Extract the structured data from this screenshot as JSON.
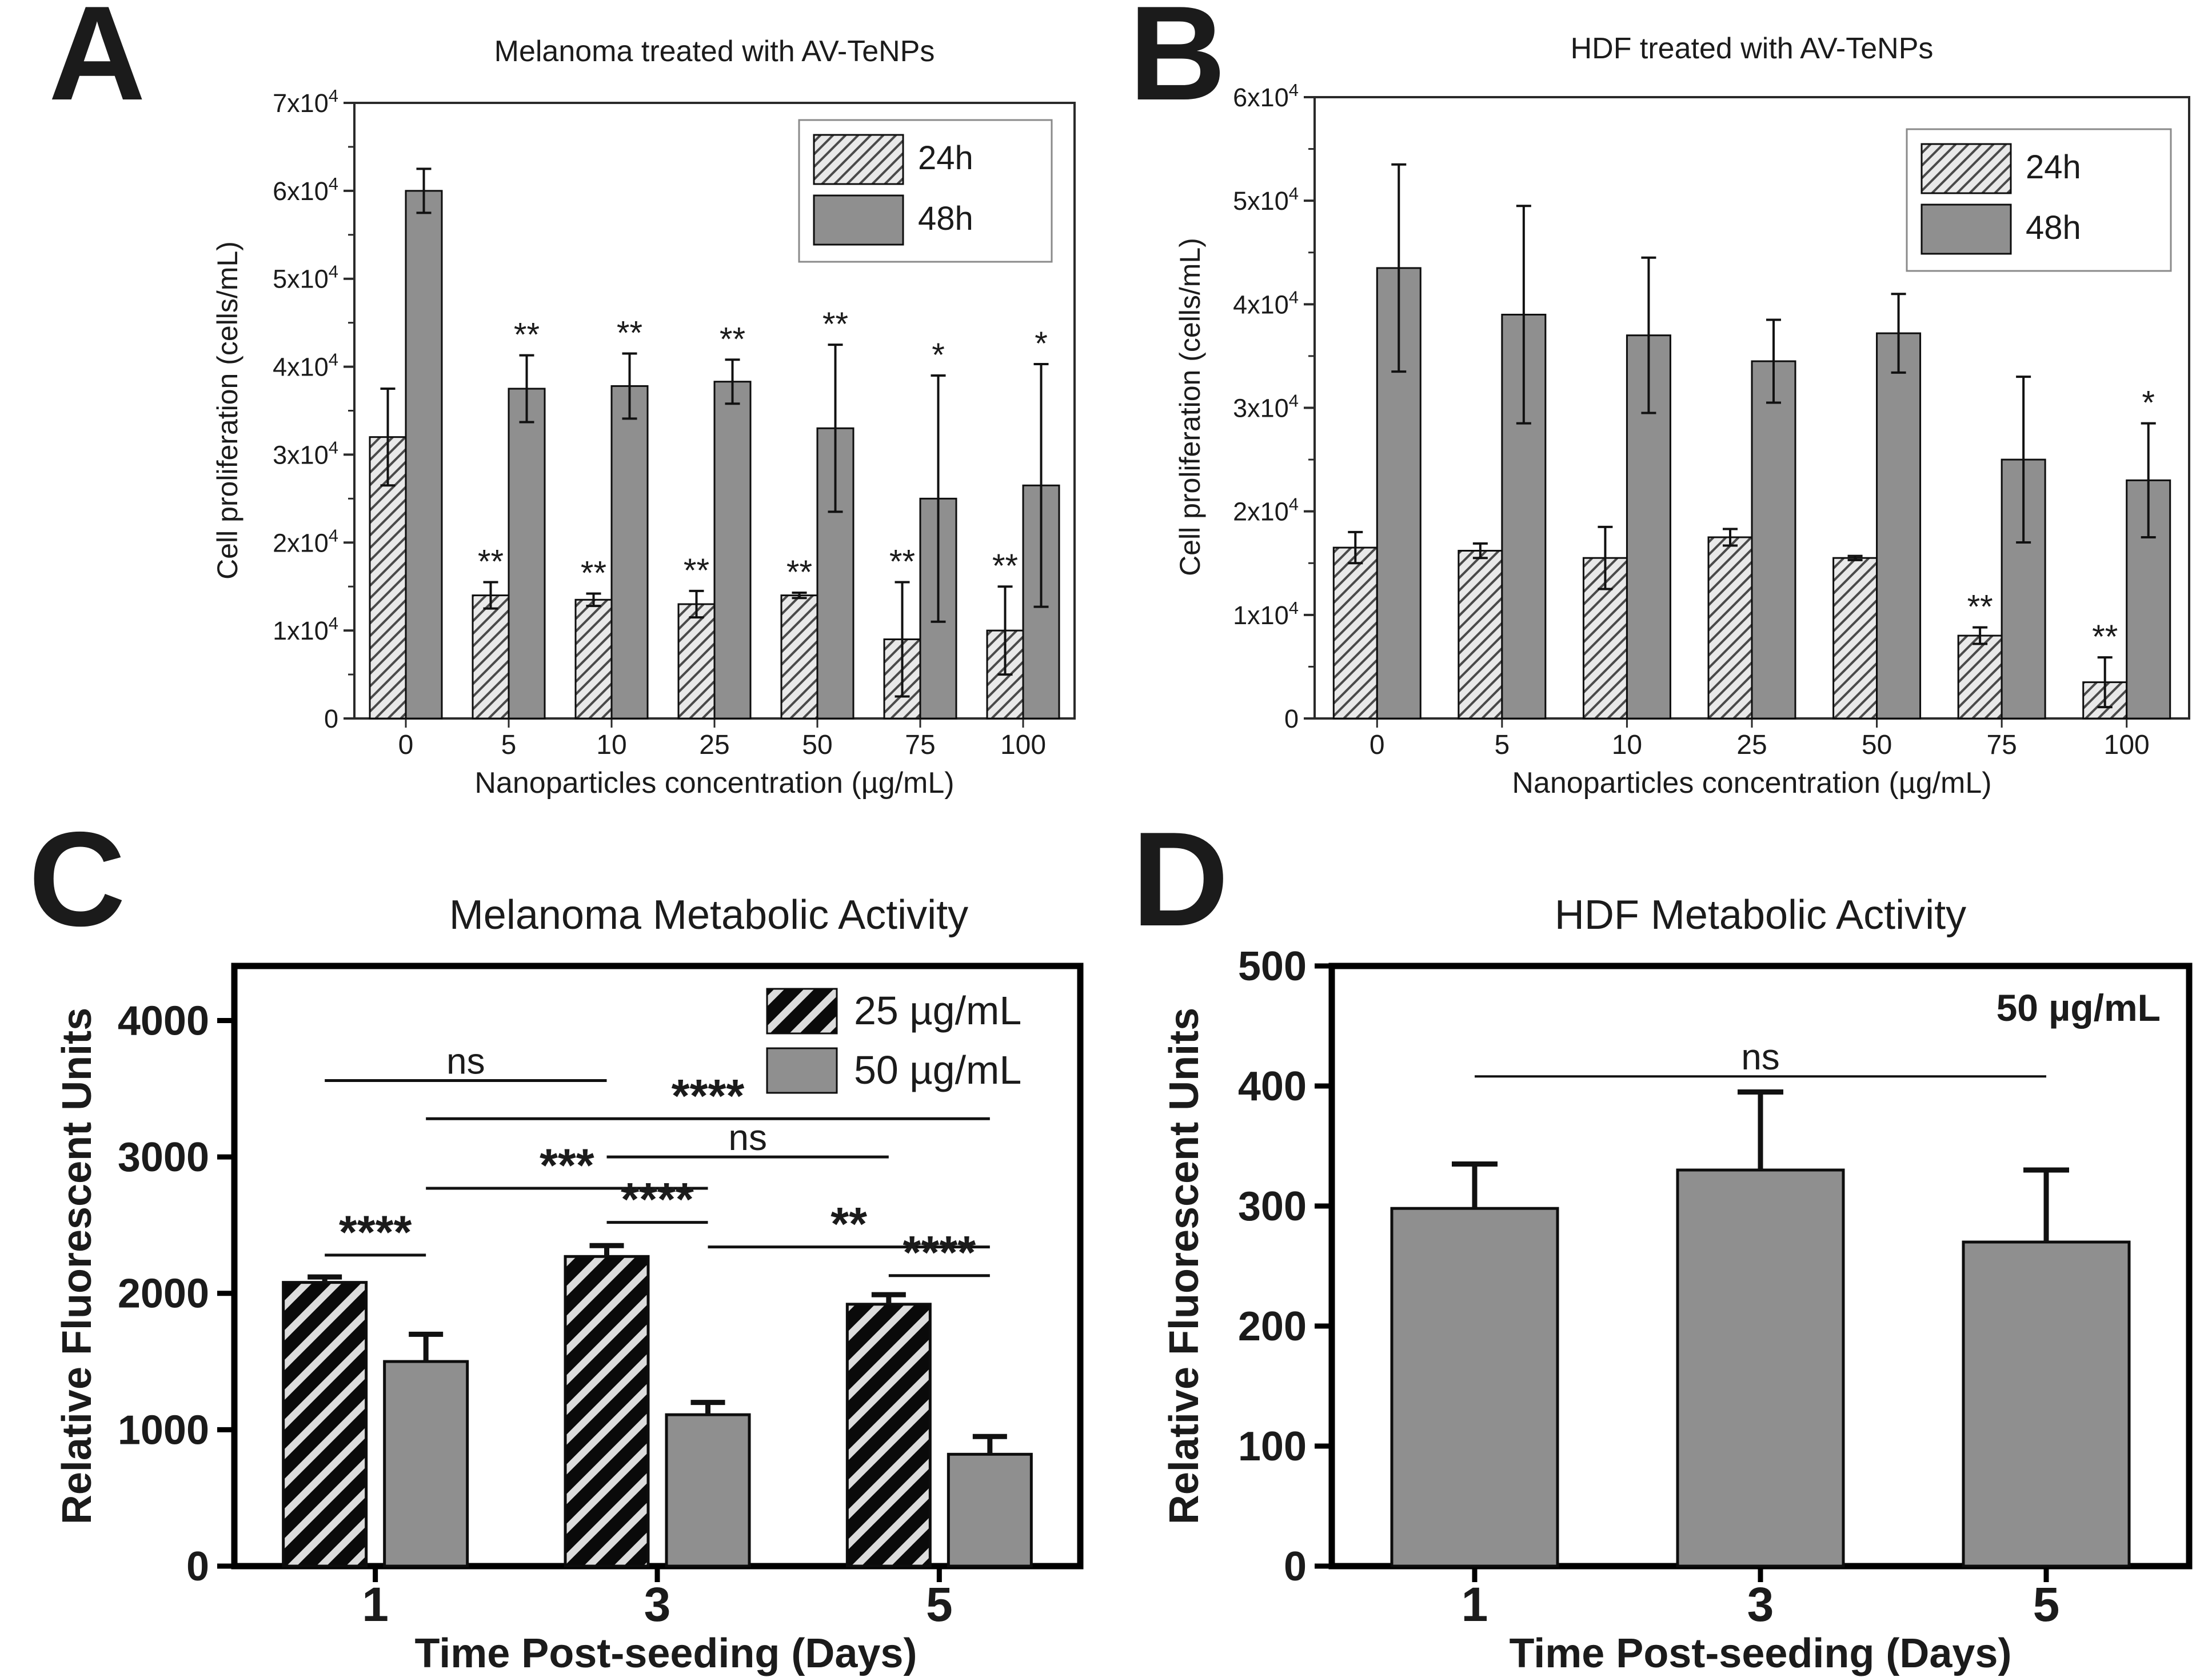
{
  "figure": {
    "background": "#ffffff",
    "colors": {
      "bar_solid": "#8f8f8f",
      "hatch_bg": "#e9e9e9",
      "hatch_line": "#4a4a4a",
      "stripe_bg": "#dcdcdc",
      "stripe_line": "#0a0a0a",
      "axis_ab": "#2a2a2a",
      "axis_cd": "#000000",
      "error_bar": "#111111",
      "text": "#1b1b1b"
    },
    "panels": [
      {
        "letter": "A",
        "title": "Melanoma treated with AV-TeNPs",
        "xlabel": "Nanoparticles concentration (µg/mL)",
        "ylabel": "Cell proliferation (cells/mL)",
        "chart_data": {
          "type": "bar",
          "categories": [
            "0",
            "5",
            "10",
            "25",
            "50",
            "75",
            "100"
          ],
          "ylim": [
            0,
            70000
          ],
          "ytick_values": [
            0,
            10000,
            20000,
            30000,
            40000,
            50000,
            60000,
            70000
          ],
          "ytick_labels": [
            "0",
            "1x10^4",
            "2x10^4",
            "3x10^4",
            "4x10^4",
            "5x10^4",
            "6x10^4",
            "7x10^4"
          ],
          "legend_position": "top-right",
          "grid": false,
          "series": [
            {
              "name": "24h",
              "pattern": "hatch-thin",
              "values": [
                32000,
                14000,
                13500,
                13000,
                14000,
                9000,
                10000
              ],
              "err": [
                5500,
                1500,
                700,
                1500,
                300,
                6500,
                5000
              ],
              "sig": [
                "",
                "**",
                "**",
                "**",
                "**",
                "**",
                "**"
              ]
            },
            {
              "name": "48h",
              "pattern": "solid",
              "values": [
                60000,
                37500,
                37800,
                38300,
                33000,
                25000,
                26500
              ],
              "err": [
                2500,
                3800,
                3700,
                2500,
                9500,
                14000,
                13800
              ],
              "sig": [
                "",
                "**",
                "**",
                "**",
                "**",
                "*",
                "*"
              ]
            }
          ]
        }
      },
      {
        "letter": "B",
        "title": "HDF treated with AV-TeNPs",
        "xlabel": "Nanoparticles concentration (µg/mL)",
        "ylabel": "Cell proliferation (cells/mL)",
        "chart_data": {
          "type": "bar",
          "categories": [
            "0",
            "5",
            "10",
            "25",
            "50",
            "75",
            "100"
          ],
          "ylim": [
            0,
            60000
          ],
          "ytick_values": [
            0,
            10000,
            20000,
            30000,
            40000,
            50000,
            60000
          ],
          "ytick_labels": [
            "0",
            "1x10^4",
            "2x10^4",
            "3x10^4",
            "4x10^4",
            "5x10^4",
            "6x10^4"
          ],
          "legend_position": "top-right",
          "grid": false,
          "series": [
            {
              "name": "24h",
              "pattern": "hatch-thin",
              "values": [
                16500,
                16200,
                15500,
                17500,
                15500,
                8000,
                3500
              ],
              "err": [
                1500,
                700,
                3000,
                800,
                200,
                800,
                2400
              ],
              "sig": [
                "",
                "",
                "",
                "",
                "",
                "**",
                "**"
              ]
            },
            {
              "name": "48h",
              "pattern": "solid",
              "values": [
                43500,
                39000,
                37000,
                34500,
                37200,
                25000,
                23000
              ],
              "err": [
                10000,
                10500,
                7500,
                4000,
                3800,
                8000,
                5500
              ],
              "sig": [
                "",
                "",
                "",
                "",
                "",
                "",
                "*"
              ]
            }
          ]
        }
      },
      {
        "letter": "C",
        "title": "Melanoma Metabolic Activity",
        "xlabel": "Time Post-seeding (Days)",
        "ylabel": "Relative Fluorescent Units",
        "chart_data": {
          "type": "bar",
          "categories": [
            "1",
            "3",
            "5"
          ],
          "ylim": [
            0,
            4400
          ],
          "ytick_values": [
            0,
            1000,
            2000,
            3000,
            4000
          ],
          "ytick_labels": [
            "0",
            "1000",
            "2000",
            "3000",
            "4000"
          ],
          "legend_position": "top-right",
          "grid": false,
          "series": [
            {
              "name": "25 µg/mL",
              "pattern": "hatch-bold",
              "values": [
                2080,
                2270,
                1920
              ],
              "err": [
                40,
                80,
                70
              ]
            },
            {
              "name": "50 µg/mL",
              "pattern": "solid",
              "values": [
                1500,
                1110,
                820
              ],
              "err": [
                200,
                90,
                130
              ]
            }
          ],
          "brackets": [
            {
              "label": "ns",
              "a": [
                0,
                0
              ],
              "b": [
                1,
                0
              ],
              "y": 3560
            },
            {
              "label": "****",
              "a": [
                0,
                1
              ],
              "b": [
                2,
                1
              ],
              "y": 3280
            },
            {
              "label": "ns",
              "a": [
                1,
                0
              ],
              "b": [
                2,
                0
              ],
              "y": 3000
            },
            {
              "label": "***",
              "a": [
                0,
                1
              ],
              "b": [
                1,
                1
              ],
              "y": 2770
            },
            {
              "label": "****",
              "a": [
                1,
                0
              ],
              "b": [
                1,
                1
              ],
              "y": 2520
            },
            {
              "label": "**",
              "a": [
                1,
                1
              ],
              "b": [
                2,
                1
              ],
              "y": 2340
            },
            {
              "label": "****",
              "a": [
                0,
                0
              ],
              "b": [
                0,
                1
              ],
              "y": 2280
            },
            {
              "label": "****",
              "a": [
                2,
                0
              ],
              "b": [
                2,
                1
              ],
              "y": 2130
            }
          ]
        }
      },
      {
        "letter": "D",
        "title": "HDF Metabolic Activity",
        "xlabel": "Time Post-seeding (Days)",
        "ylabel": "Relative Fluorescent Units",
        "annotation": "50 µg/mL",
        "chart_data": {
          "type": "bar",
          "categories": [
            "1",
            "3",
            "5"
          ],
          "ylim": [
            0,
            500
          ],
          "ytick_values": [
            0,
            100,
            200,
            300,
            400,
            500
          ],
          "ytick_labels": [
            "0",
            "100",
            "200",
            "300",
            "400",
            "500"
          ],
          "grid": false,
          "series": [
            {
              "name": "50 µg/mL",
              "pattern": "solid",
              "values": [
                298,
                330,
                270
              ],
              "err": [
                37,
                65,
                60
              ]
            }
          ],
          "brackets": [
            {
              "label": "ns",
              "a": [
                0,
                0
              ],
              "b": [
                2,
                0
              ],
              "y": 408
            }
          ]
        }
      }
    ]
  }
}
